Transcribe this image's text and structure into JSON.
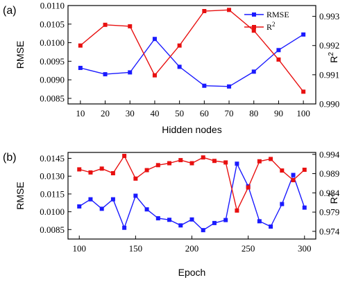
{
  "chart_data": [
    {
      "type": "line",
      "panel_label": "(a)",
      "xlabel": "Hidden nodes",
      "ylabel_left": "RMSE",
      "ylabel_right": "R",
      "ylabel_right_sup": "2",
      "x": [
        10,
        20,
        30,
        40,
        50,
        60,
        70,
        80,
        90,
        100
      ],
      "xlim": [
        5,
        105
      ],
      "xticks": [
        "10",
        "20",
        "30",
        "40",
        "50",
        "60",
        "70",
        "80",
        "90",
        "100"
      ],
      "ylim_left": [
        0.00835,
        0.011
      ],
      "yticks_left": [
        "0.0085",
        "0.0090",
        "0.0095",
        "0.0100",
        "0.0105",
        "0.0110"
      ],
      "ylim_right": [
        0.99,
        0.99337
      ],
      "yticks_right": [
        "0.990",
        "0.991",
        "0.992",
        "0.993"
      ],
      "legend_position": "top-right",
      "series": [
        {
          "name": "RMSE",
          "name_sup": "",
          "axis": "left",
          "color": "#1a1aff",
          "marker": "square",
          "values": [
            0.00932,
            0.00915,
            0.0092,
            0.0101,
            0.00935,
            0.00884,
            0.00882,
            0.00922,
            0.0098,
            0.01022
          ]
        },
        {
          "name": "R",
          "name_sup": "2",
          "axis": "right",
          "color": "#e81010",
          "marker": "square",
          "values": [
            0.992,
            0.99271,
            0.99266,
            0.99098,
            0.992,
            0.99318,
            0.99322,
            0.99251,
            0.99152,
            0.99042
          ]
        }
      ]
    },
    {
      "type": "line",
      "panel_label": "(b)",
      "xlabel": "Epoch",
      "ylabel_left": "RMSE",
      "ylabel_right": "R",
      "ylabel_right_sup": "2",
      "x": [
        100,
        110,
        120,
        130,
        140,
        150,
        160,
        170,
        180,
        190,
        200,
        210,
        220,
        230,
        240,
        250,
        260,
        270,
        280,
        290,
        300
      ],
      "xlim": [
        90,
        310
      ],
      "xticks": [
        "100",
        "150",
        "200",
        "250",
        "300"
      ],
      "xtick_values": [
        100,
        150,
        200,
        250,
        300
      ],
      "ylim_left": [
        0.0077,
        0.015
      ],
      "yticks_left": [
        "0.0085",
        "0.0100",
        "0.0115",
        "0.0130",
        "0.0145"
      ],
      "ylim_right": [
        0.972,
        0.9945
      ],
      "yticks_right": [
        "0.974",
        "0.979",
        "0.984",
        "0.989",
        "0.994"
      ],
      "series": [
        {
          "name": "RMSE",
          "axis": "left",
          "color": "#1a1aff",
          "marker": "square",
          "values": [
            0.01045,
            0.01105,
            0.01025,
            0.01105,
            0.00865,
            0.01135,
            0.0102,
            0.00945,
            0.00932,
            0.00885,
            0.00935,
            0.00845,
            0.00905,
            0.0093,
            0.01405,
            0.01215,
            0.0092,
            0.00875,
            0.01065,
            0.0131,
            0.01035
          ]
        },
        {
          "name": "R2",
          "axis": "right",
          "color": "#e81010",
          "marker": "square",
          "values": [
            0.9901,
            0.9893,
            0.9903,
            0.9891,
            0.9936,
            0.9877,
            0.9899,
            0.9912,
            0.9917,
            0.9925,
            0.9917,
            0.9932,
            0.9923,
            0.9919,
            0.9794,
            0.9854,
            0.9922,
            0.9928,
            0.9898,
            0.9873,
            0.99
          ]
        }
      ]
    }
  ]
}
